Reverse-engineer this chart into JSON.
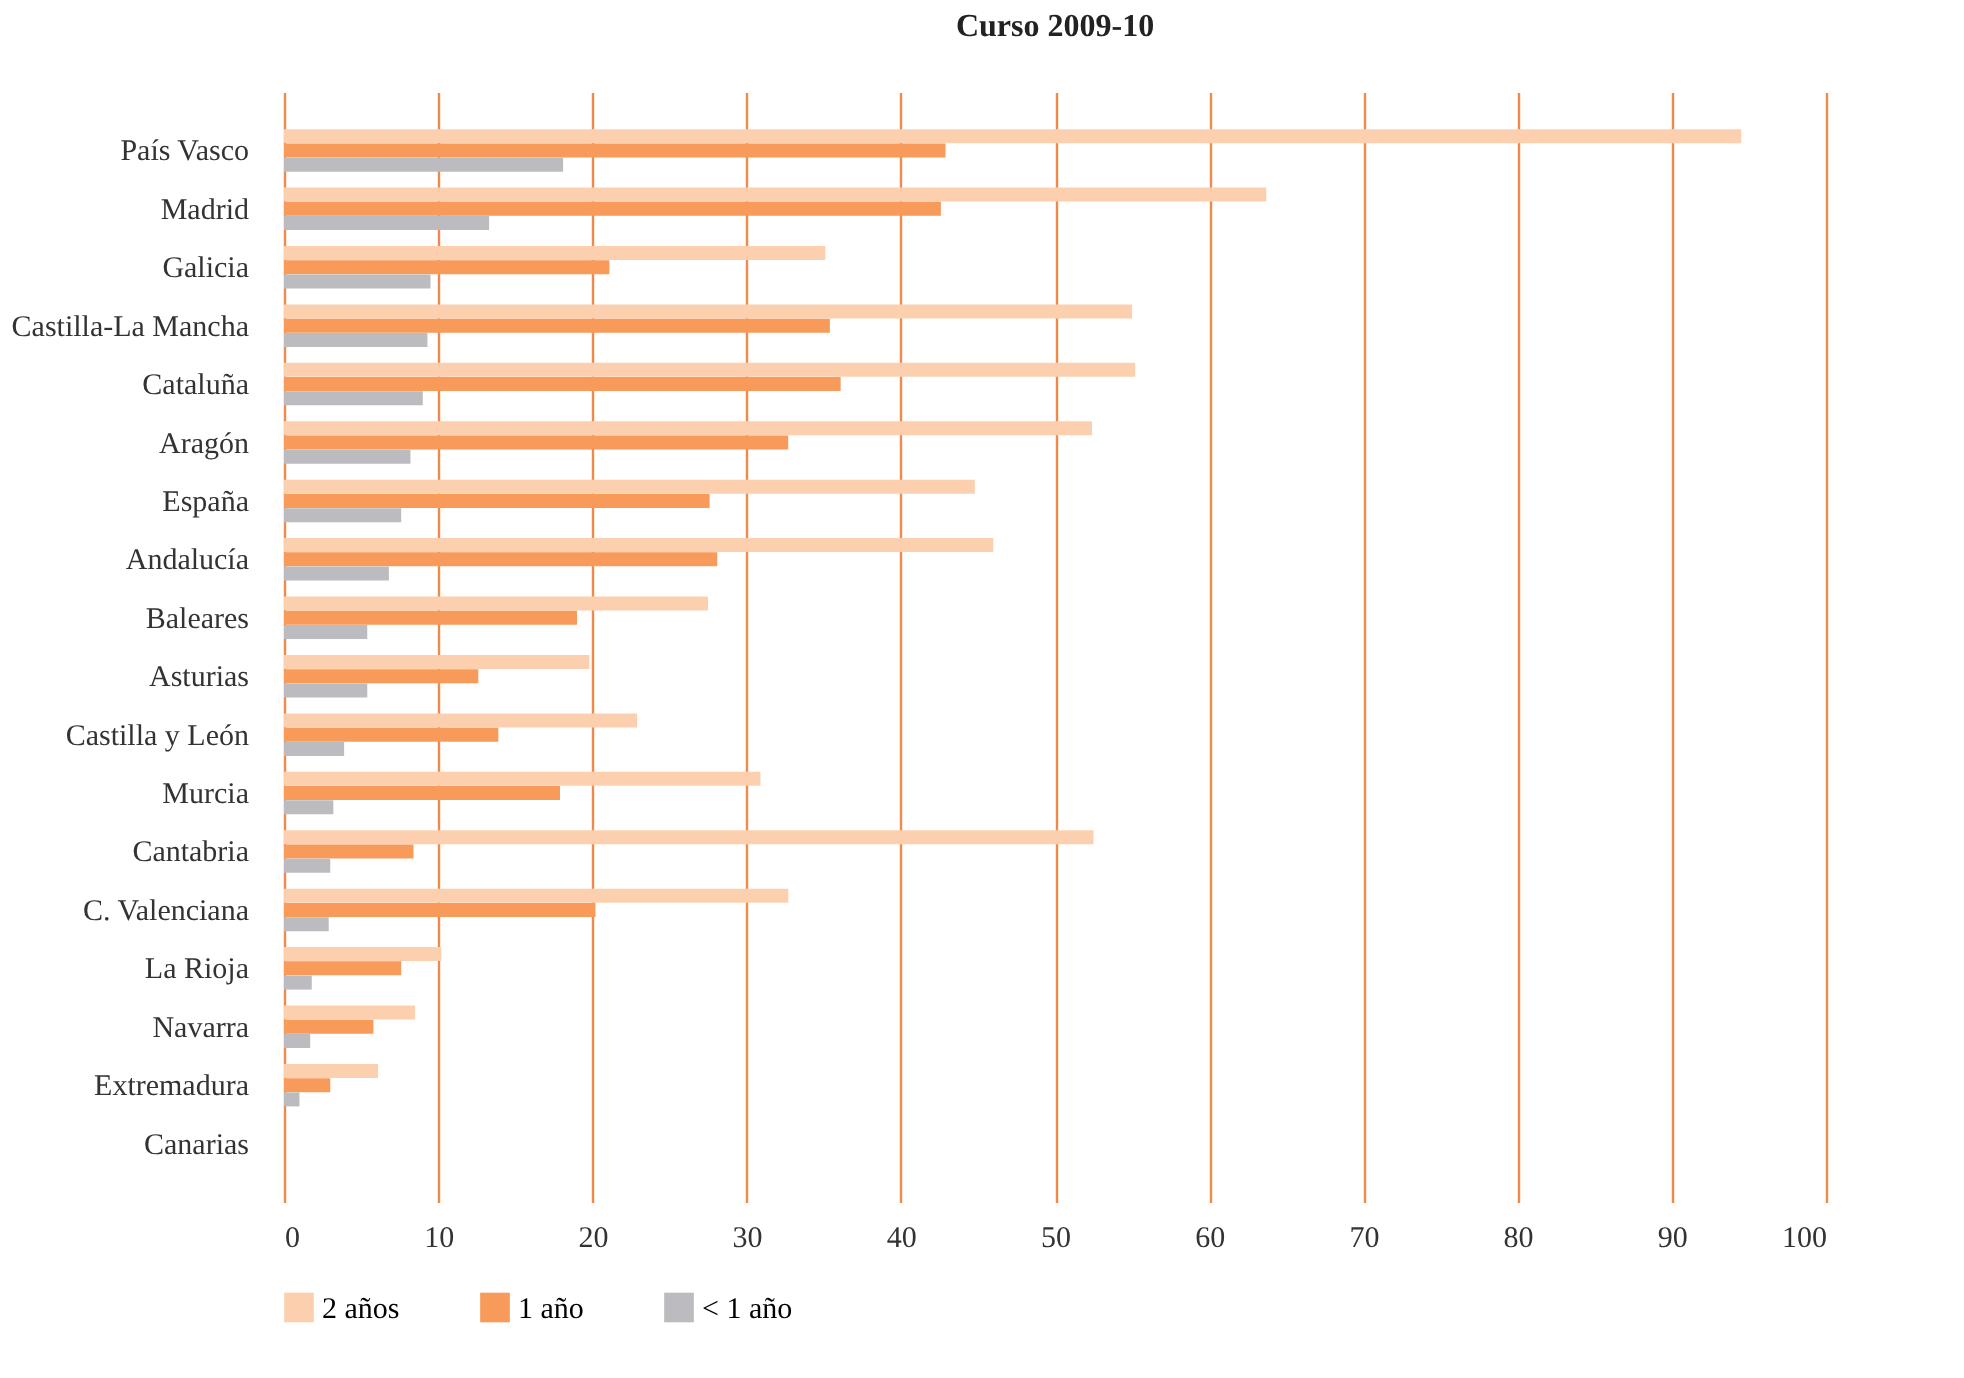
{
  "chart_data": {
    "type": "bar",
    "orientation": "horizontal",
    "title": "Curso 2009-10",
    "categories": [
      "País Vasco",
      "Madrid",
      "Galicia",
      "Castilla-La Mancha",
      "Cataluña",
      "Aragón",
      "España",
      "Andalucía",
      "Baleares",
      "Asturias",
      "Castilla y León",
      "Murcia",
      "Cantabria",
      "C. Valenciana",
      "La Rioja",
      "Navarra",
      "Extremadura",
      "Canarias"
    ],
    "series": [
      {
        "name": "2 años",
        "color": "#fcd0ae",
        "values": [
          94.5,
          63.7,
          35.1,
          55.0,
          55.2,
          52.4,
          44.8,
          46.0,
          27.5,
          19.8,
          22.9,
          30.9,
          52.5,
          32.7,
          10.2,
          8.5,
          6.1,
          null
        ]
      },
      {
        "name": "1 año",
        "color": "#f79a5a",
        "values": [
          42.9,
          42.6,
          21.1,
          35.4,
          36.1,
          32.7,
          27.6,
          28.1,
          19.0,
          12.6,
          13.9,
          17.9,
          8.4,
          20.2,
          7.6,
          5.8,
          3.0,
          null
        ]
      },
      {
        "name": "< 1 año",
        "color": "#bcbcc0",
        "values": [
          18.1,
          13.3,
          9.5,
          9.3,
          9.0,
          8.2,
          7.6,
          6.8,
          5.4,
          5.4,
          3.9,
          3.2,
          3.0,
          2.9,
          1.8,
          1.7,
          1.0,
          null
        ]
      }
    ],
    "xlim": [
      0,
      100
    ],
    "xticks": [
      0,
      10,
      20,
      30,
      40,
      50,
      60,
      70,
      80,
      90,
      100
    ],
    "grid": "x",
    "legend": "bottom"
  }
}
